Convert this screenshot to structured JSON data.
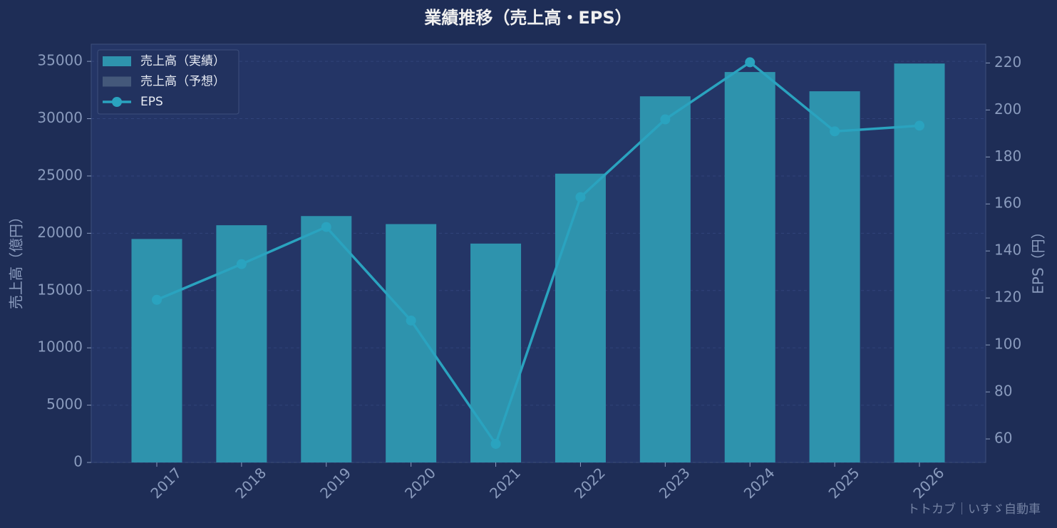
{
  "chart_data": {
    "type": "bar_line",
    "title": "業績推移（売上高・EPS）",
    "categories": [
      "2017",
      "2018",
      "2019",
      "2020",
      "2021",
      "2022",
      "2023",
      "2024",
      "2025",
      "2026"
    ],
    "series": [
      {
        "name": "売上高（実績）",
        "type": "bar",
        "color": "#2e93ad",
        "values": [
          19500,
          20700,
          21500,
          20800,
          19100,
          25200,
          31950,
          34070,
          32390,
          34810
        ]
      },
      {
        "name": "売上高（予想）",
        "type": "bar",
        "color": "#44587a",
        "values": [
          null,
          null,
          null,
          null,
          null,
          null,
          null,
          null,
          null,
          null
        ]
      },
      {
        "name": "EPS",
        "type": "line",
        "axis": "y2",
        "color": "#2aa3bf",
        "values": [
          119.2,
          134.4,
          150.2,
          110.4,
          57.9,
          162.9,
          196.0,
          220.3,
          190.9,
          193.3
        ]
      }
    ],
    "ylabel": "売上高（億円）",
    "y2label": "EPS（円）",
    "ylim": [
      0,
      36500
    ],
    "yticks": [
      0,
      5000,
      10000,
      15000,
      20000,
      25000,
      30000,
      35000
    ],
    "y2lim": [
      50,
      228
    ],
    "y2ticks": [
      60,
      80,
      100,
      120,
      140,
      160,
      180,
      200,
      220
    ],
    "grid": true,
    "legend": "upper-left",
    "watermark": "トトカブ｜いすゞ自動車"
  }
}
